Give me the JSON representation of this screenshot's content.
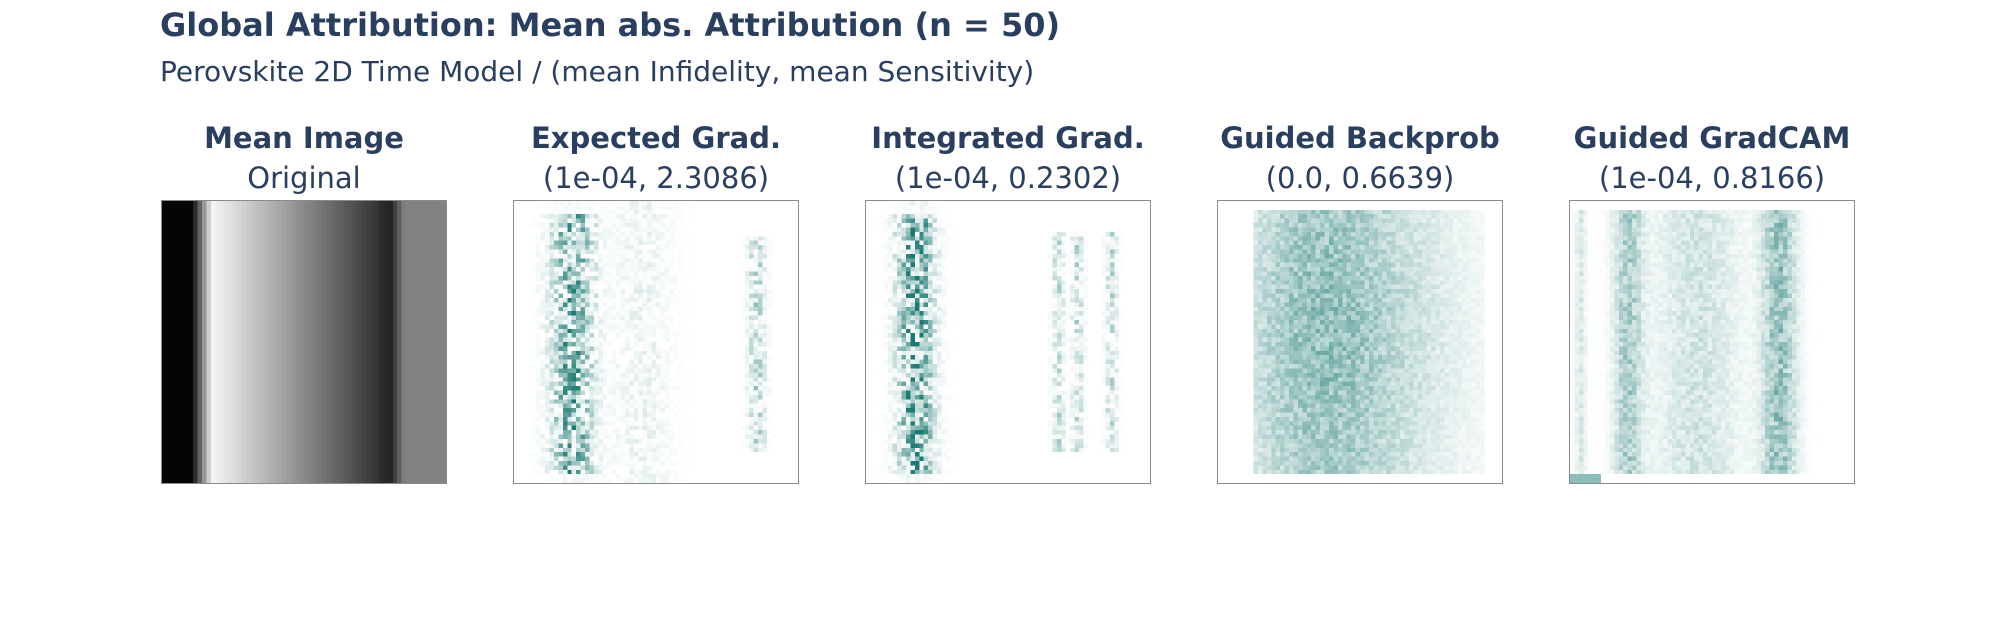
{
  "title": "Global Attribution: Mean abs. Attribution (n = 50)",
  "subtitle": "Perovskite 2D Time Model / (mean Infidelity, mean Sensitivity)",
  "colors": {
    "text": "#2a3f5f",
    "heatmap": "#1b7a72",
    "frame": "#8a8a8a"
  },
  "chart_data": {
    "type": "heatmap",
    "panels": [
      {
        "title": "Mean Image",
        "subtitle": "Original",
        "colormap": "gray"
      },
      {
        "title": "Expected Grad.",
        "subtitle": "(1e-04, 2.3086)",
        "colormap": "white-teal",
        "mean_infidelity": 0.0001,
        "mean_sensitivity": 2.3086
      },
      {
        "title": "Integrated Grad.",
        "subtitle": "(1e-04, 0.2302)",
        "colormap": "white-teal",
        "mean_infidelity": 0.0001,
        "mean_sensitivity": 0.2302
      },
      {
        "title": "Guided Backprob",
        "subtitle": "(0.0, 0.6639)",
        "colormap": "white-teal",
        "mean_infidelity": 0.0,
        "mean_sensitivity": 0.6639
      },
      {
        "title": "Guided GradCAM",
        "subtitle": "(1e-04, 0.8166)",
        "colormap": "white-teal",
        "mean_infidelity": 0.0001,
        "mean_sensitivity": 0.8166
      }
    ]
  }
}
